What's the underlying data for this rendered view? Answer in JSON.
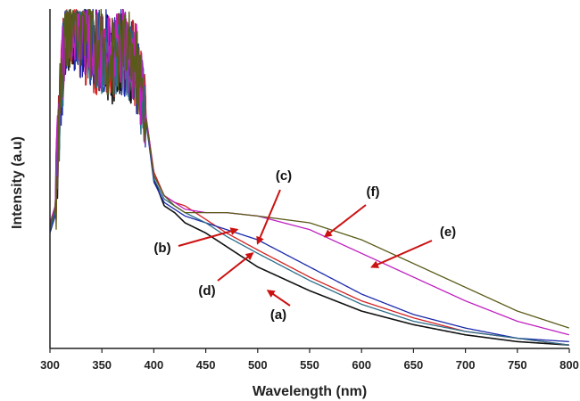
{
  "chart_data": {
    "type": "line",
    "xlabel": "Wavelength (nm)",
    "ylabel": "Intensity (a.u)",
    "xlim": [
      300,
      800
    ],
    "ylim": [
      0,
      100
    ],
    "x_ticks": [
      300,
      350,
      400,
      450,
      500,
      550,
      600,
      650,
      700,
      750,
      800
    ],
    "grid": false,
    "legend": "none",
    "series": [
      {
        "label": "(a)",
        "color": "#111111",
        "x": [
          300,
          305,
          310,
          315,
          320,
          330,
          340,
          350,
          360,
          370,
          380,
          385,
          390,
          395,
          400,
          410,
          420,
          430,
          450,
          470,
          500,
          550,
          600,
          650,
          700,
          750,
          800
        ],
        "y": [
          35,
          40,
          75,
          93,
          95,
          93,
          90,
          86,
          85,
          88,
          84,
          80,
          72,
          62,
          50,
          42,
          40,
          37,
          34,
          30,
          24,
          17,
          11,
          7,
          4,
          2,
          1
        ]
      },
      {
        "label": "(b)",
        "color": "#d22222",
        "x": [
          300,
          305,
          310,
          315,
          320,
          330,
          340,
          350,
          360,
          370,
          380,
          385,
          390,
          395,
          400,
          410,
          420,
          430,
          450,
          470,
          500,
          550,
          600,
          650,
          700,
          750,
          800
        ],
        "y": [
          36,
          41,
          76,
          94,
          95,
          92,
          88,
          87,
          86,
          89,
          85,
          81,
          73,
          63,
          52,
          45,
          43,
          42,
          38,
          34,
          29,
          21,
          14,
          9,
          5,
          3,
          1
        ]
      },
      {
        "label": "(c)",
        "color": "#1a2aaa",
        "x": [
          300,
          305,
          310,
          315,
          320,
          330,
          340,
          350,
          360,
          370,
          380,
          385,
          390,
          395,
          400,
          410,
          420,
          430,
          450,
          470,
          500,
          550,
          600,
          650,
          700,
          750,
          800
        ],
        "y": [
          34,
          39,
          74,
          92,
          94,
          92,
          89,
          88,
          87,
          87,
          85,
          80,
          72,
          61,
          49,
          43,
          41,
          39,
          37,
          35,
          32,
          24,
          16,
          10,
          6,
          3,
          2
        ]
      },
      {
        "label": "(d)",
        "color": "#2a6e8a",
        "x": [
          300,
          305,
          310,
          315,
          320,
          330,
          340,
          350,
          360,
          370,
          380,
          385,
          390,
          395,
          400,
          410,
          420,
          430,
          450,
          470,
          500,
          550,
          600,
          650,
          700,
          750,
          800
        ],
        "y": [
          35,
          40,
          75,
          93,
          95,
          93,
          90,
          87,
          86,
          88,
          84,
          80,
          72,
          62,
          50,
          44,
          42,
          40,
          37,
          33,
          28,
          20,
          13,
          8,
          5,
          3,
          1
        ]
      },
      {
        "label": "(e)",
        "color": "#c020c0",
        "x": [
          300,
          305,
          310,
          315,
          320,
          330,
          340,
          350,
          360,
          370,
          380,
          385,
          390,
          395,
          400,
          410,
          420,
          430,
          450,
          470,
          500,
          550,
          600,
          650,
          700,
          750,
          800
        ],
        "y": [
          37,
          42,
          77,
          94,
          96,
          93,
          91,
          88,
          87,
          90,
          86,
          82,
          74,
          63,
          51,
          45,
          43,
          41,
          40,
          40,
          39,
          35,
          28,
          21,
          14,
          8,
          4
        ]
      },
      {
        "label": "(f)",
        "color": "#5a5a18",
        "x": [
          300,
          305,
          310,
          315,
          320,
          330,
          340,
          350,
          360,
          370,
          380,
          385,
          390,
          395,
          400,
          410,
          420,
          430,
          450,
          470,
          500,
          550,
          600,
          650,
          700,
          750,
          800
        ],
        "y": [
          36,
          41,
          76,
          95,
          96,
          94,
          90,
          87,
          86,
          89,
          85,
          81,
          73,
          62,
          51,
          45,
          42,
          40,
          40,
          40,
          39,
          37,
          32,
          25,
          18,
          11,
          6
        ]
      }
    ],
    "annotations": [
      {
        "text": "(a)",
        "arrow_color": "#cc1111",
        "point_at": [
          510,
          17
        ]
      },
      {
        "text": "(b)",
        "arrow_color": "#cc1111",
        "point_at": [
          480,
          35
        ]
      },
      {
        "text": "(c)",
        "arrow_color": "#cc1111",
        "point_at": [
          500,
          31
        ]
      },
      {
        "text": "(d)",
        "arrow_color": "#cc1111",
        "point_at": [
          495,
          28
        ]
      },
      {
        "text": "(e)",
        "arrow_color": "#cc1111",
        "point_at": [
          610,
          24
        ]
      },
      {
        "text": "(f)",
        "arrow_color": "#cc1111",
        "point_at": [
          565,
          33
        ]
      }
    ]
  }
}
